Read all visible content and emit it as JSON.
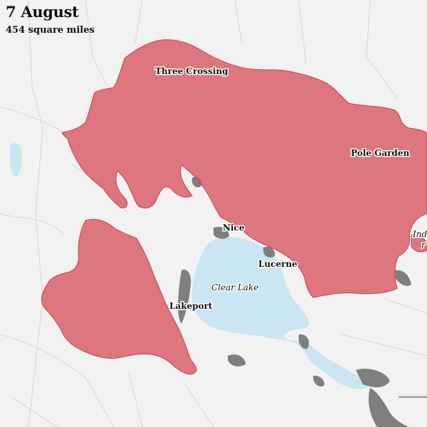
{
  "header": {
    "title": "7 August",
    "subtitle": "454 square miles"
  },
  "labels": {
    "three_crossing": "Three Crossing",
    "pole_garden": "Pole Garden",
    "nice": "Nice",
    "lucerne": "Lucerne",
    "clear_lake": "Clear Lake",
    "lakeport": "Lakeport",
    "partial_right": "Ind",
    "partial_right2": "r"
  },
  "colors": {
    "fire": "#d9535f",
    "lake": "#c9e6f2",
    "urban": "#6b6b6b",
    "background": "#f2f2f2"
  }
}
